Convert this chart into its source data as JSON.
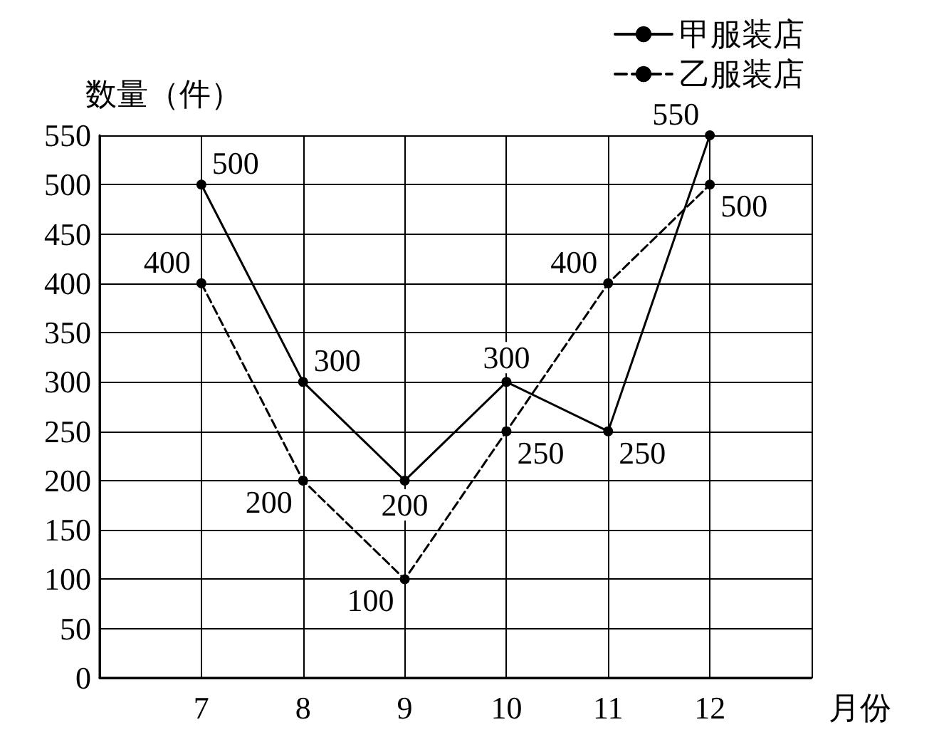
{
  "chart_data": {
    "type": "line",
    "xlabel": "月份",
    "ylabel": "数量（件）",
    "x": [
      7,
      8,
      9,
      10,
      11,
      12
    ],
    "xlim": [
      6,
      13
    ],
    "xticks": [
      7,
      8,
      9,
      10,
      11,
      12
    ],
    "ylim": [
      0,
      550
    ],
    "yticks": [
      0,
      50,
      100,
      150,
      200,
      250,
      300,
      350,
      400,
      450,
      500,
      550
    ],
    "series": [
      {
        "name": "甲服装店",
        "color": "#000000",
        "line_style": "solid",
        "values": [
          500,
          300,
          200,
          300,
          250,
          550
        ]
      },
      {
        "name": "乙服装店",
        "color": "#000000",
        "line_style": "dashed",
        "values": [
          400,
          200,
          100,
          250,
          400,
          500
        ]
      }
    ],
    "marker": "circle",
    "data_labels": true,
    "grid": true,
    "legend": "top right"
  }
}
